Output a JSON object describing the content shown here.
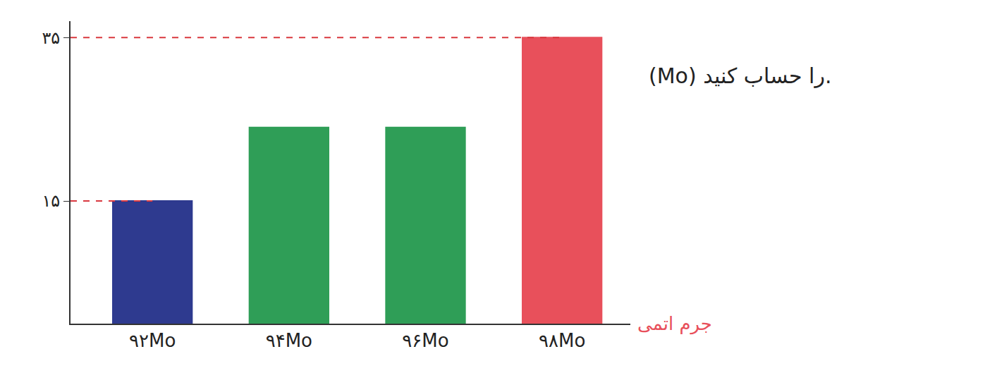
{
  "chart_data": {
    "type": "bar",
    "categories": [
      "۹۲Mo",
      "۹۴Mo",
      "۹۶Mo",
      "۹۸Mo"
    ],
    "values": [
      15,
      24,
      24,
      35
    ],
    "colors": [
      "#2e3a8f",
      "#2f9e57",
      "#2f9e57",
      "#e8505b"
    ],
    "xlabel": "جرم اتمی",
    "annotations": [
      "(Mo) را حساب کنید."
    ],
    "ylim": [
      0,
      37
    ],
    "yticks": [
      {
        "value": 15,
        "label": "۱۵"
      },
      {
        "value": 35,
        "label": "۳۵"
      }
    ],
    "grid": false
  }
}
